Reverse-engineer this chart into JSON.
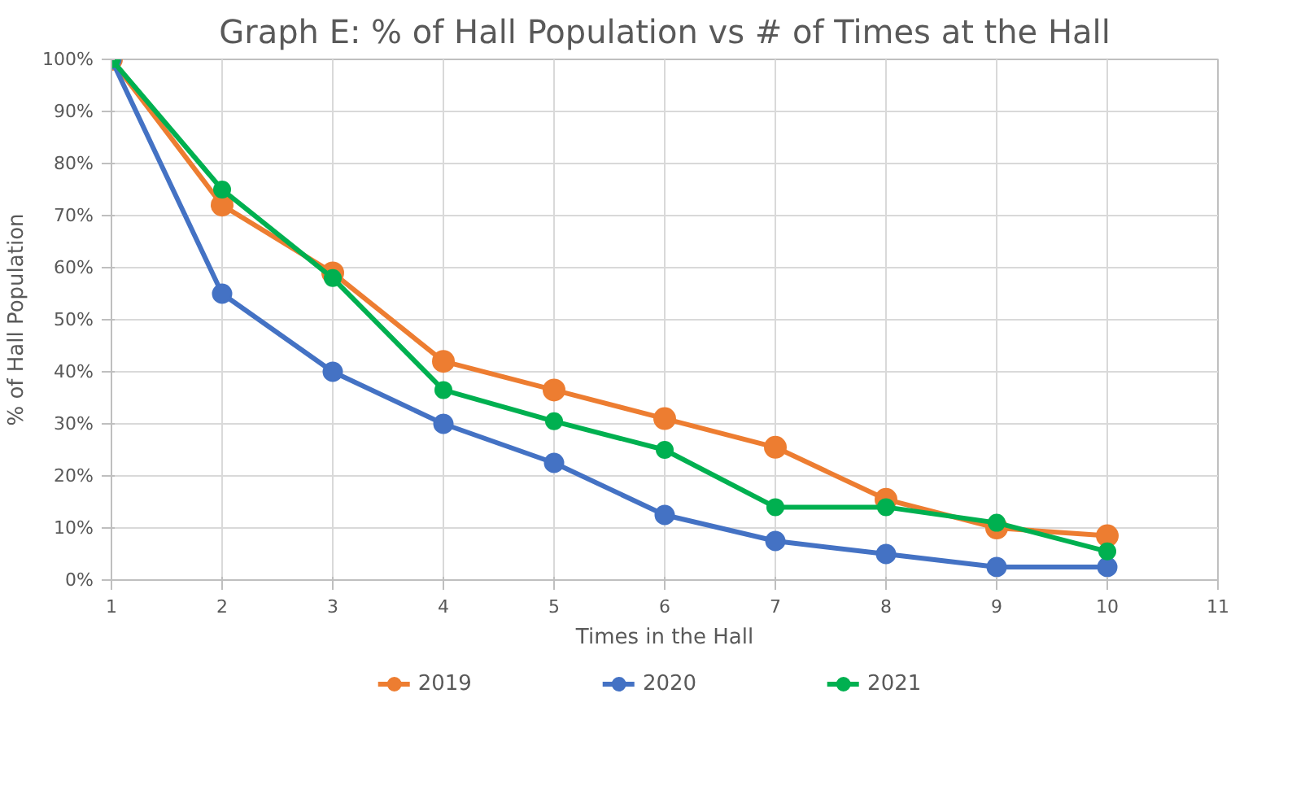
{
  "chart_data": {
    "type": "line",
    "title": "Graph E: % of Hall Population vs # of Times at the Hall",
    "xlabel": "Times in the Hall",
    "ylabel": "% of Hall Population",
    "x": [
      1,
      2,
      3,
      4,
      5,
      6,
      7,
      8,
      9,
      10
    ],
    "series": [
      {
        "name": "2019",
        "color": "#ed7d31",
        "values": [
          100,
          72,
          59,
          42,
          36.5,
          31,
          25.5,
          15.5,
          10,
          8.5
        ]
      },
      {
        "name": "2020",
        "color": "#4472c4",
        "values": [
          100,
          55,
          40,
          30,
          22.5,
          12.5,
          7.5,
          5,
          2.5,
          2.5
        ]
      },
      {
        "name": "2021",
        "color": "#00b050",
        "values": [
          100,
          75,
          58,
          36.5,
          30.5,
          25,
          14,
          14,
          11,
          5.5
        ]
      }
    ],
    "xlim": [
      1,
      11
    ],
    "xticks": [
      1,
      2,
      3,
      4,
      5,
      6,
      7,
      8,
      9,
      10,
      11
    ],
    "ylim": [
      0,
      100
    ],
    "yticks": [
      {
        "value": 0,
        "label": "0%"
      },
      {
        "value": 10,
        "label": "10%"
      },
      {
        "value": 20,
        "label": "20%"
      },
      {
        "value": 30,
        "label": "30%"
      },
      {
        "value": 40,
        "label": "40%"
      },
      {
        "value": 50,
        "label": "50%"
      },
      {
        "value": 60,
        "label": "60%"
      },
      {
        "value": 70,
        "label": "70%"
      },
      {
        "value": 80,
        "label": "80%"
      },
      {
        "value": 90,
        "label": "90%"
      },
      {
        "value": 100,
        "label": "100%"
      }
    ],
    "grid": true,
    "legend": "bottom",
    "marker": "circle",
    "line_style": "solid"
  }
}
